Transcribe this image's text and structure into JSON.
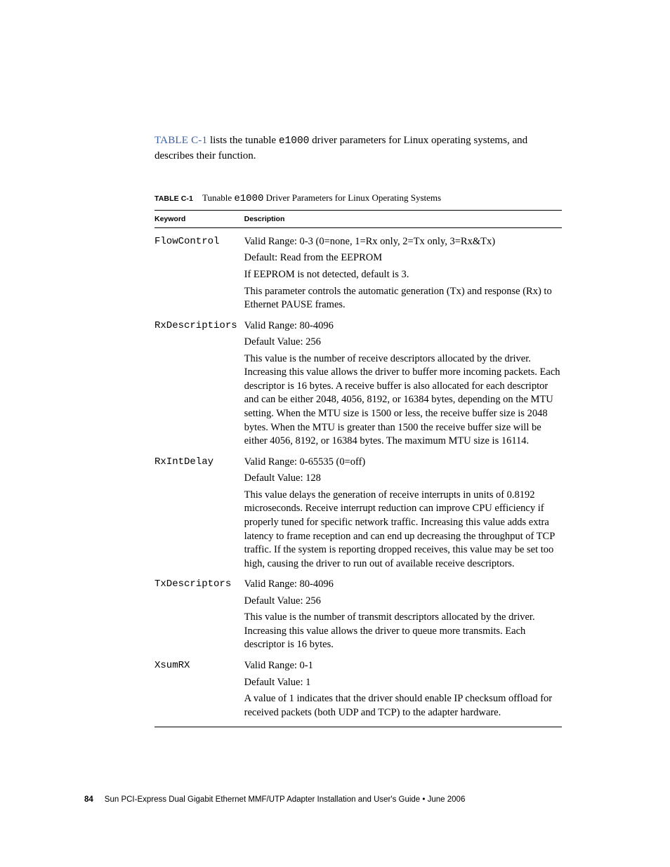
{
  "intro": {
    "xref": "TABLE C-1",
    "text_before": " lists the tunable ",
    "code": "e1000",
    "text_after": " driver parameters for Linux operating systems, and describes their function."
  },
  "caption": {
    "label": "TABLE C-1",
    "spacer": " ",
    "text_before": "Tunable ",
    "code": "e1000",
    "text_after": " Driver Parameters for Linux Operating Systems"
  },
  "table": {
    "headers": {
      "keyword": "Keyword",
      "description": "Description"
    },
    "rows": [
      {
        "keyword": "FlowControl",
        "paras": [
          "Valid Range: 0-3 (0=none, 1=Rx only, 2=Tx only, 3=Rx&Tx)",
          "Default: Read from the EEPROM",
          "If EEPROM is not detected, default is 3.",
          "This parameter controls the automatic generation (Tx) and response (Rx) to Ethernet PAUSE frames."
        ]
      },
      {
        "keyword": "RxDescriptiors",
        "paras": [
          "Valid Range: 80-4096",
          "Default Value: 256",
          "This value is the number of receive descriptors allocated by the driver. Increasing this value allows the driver to buffer more incoming packets. Each descriptor is 16 bytes. A receive buffer is also allocated for each descriptor and can be either 2048, 4056, 8192, or 16384 bytes, depending on the MTU setting. When the MTU size is 1500 or less, the receive buffer size is 2048 bytes. When the MTU is greater than 1500 the receive buffer size will be either 4056, 8192, or 16384 bytes. The maximum MTU size is 16114."
        ]
      },
      {
        "keyword": "RxIntDelay",
        "paras": [
          "Valid Range: 0-65535 (0=off)",
          "Default Value: 128",
          "This value delays the generation of receive interrupts in units of 0.8192 microseconds. Receive interrupt reduction can improve CPU efficiency if properly tuned for specific network traffic. Increasing this value adds extra latency to frame reception and can end up decreasing the throughput of TCP traffic. If the system is reporting dropped receives, this value may be set too high, causing the driver to run out of available receive descriptors."
        ]
      },
      {
        "keyword": "TxDescriptors",
        "paras": [
          "Valid Range: 80-4096",
          "Default Value: 256",
          "This value is the number of transmit descriptors allocated by the driver. Increasing this value allows the driver to queue more transmits. Each descriptor is 16 bytes."
        ]
      },
      {
        "keyword": "XsumRX",
        "paras": [
          "Valid Range: 0-1",
          "Default Value: 1",
          "A value of 1 indicates that the driver should enable IP checksum offload for received packets (both UDP and TCP) to the adapter hardware."
        ]
      }
    ]
  },
  "footer": {
    "page_number": "84",
    "text": "Sun PCI-Express Dual Gigabit Ethernet MMF/UTP Adapter Installation and User's Guide  •  June 2006"
  }
}
